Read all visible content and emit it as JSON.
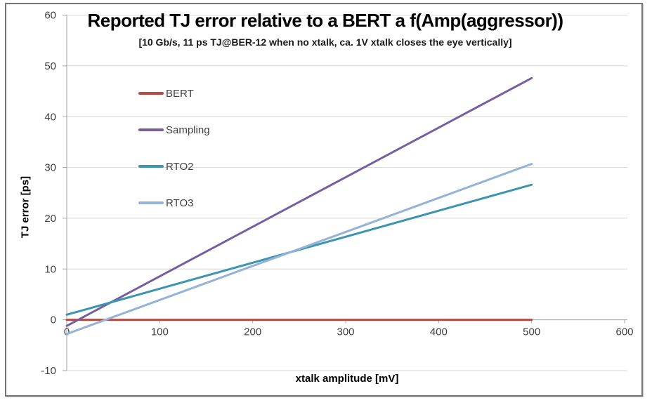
{
  "chart_data": {
    "type": "line",
    "title": "Reported TJ error relative to a BERT a f(Amp(aggressor))",
    "subtitle": "[10 Gb/s, 11 ps TJ@BER-12 when no xtalk, ca. 1V xtalk closes the eye vertically]",
    "xlabel": "xtalk amplitude [mV]",
    "ylabel": "TJ error [ps]",
    "xlim": [
      0,
      600
    ],
    "ylim": [
      -10,
      60
    ],
    "x_ticks": [
      0,
      100,
      200,
      300,
      400,
      500,
      600
    ],
    "y_ticks": [
      -10,
      0,
      10,
      20,
      30,
      40,
      50,
      60
    ],
    "grid": "horizontal-only",
    "legend_position": "inside-top-left",
    "series": [
      {
        "name": "BERT",
        "color": "#b54b44",
        "x": [
          0,
          500
        ],
        "values": [
          0,
          0
        ]
      },
      {
        "name": "Sampling",
        "color": "#7460a0",
        "x": [
          0,
          500
        ],
        "values": [
          -1.2,
          47.6
        ]
      },
      {
        "name": "RTO2",
        "color": "#3c94b0",
        "x": [
          0,
          500
        ],
        "values": [
          1.0,
          26.6
        ]
      },
      {
        "name": "RTO3",
        "color": "#95b3d7",
        "x": [
          0,
          500
        ],
        "values": [
          -2.8,
          30.7
        ]
      }
    ],
    "colors": {
      "gridline": "#d6d6d6",
      "axis_line": "#a6a6a6",
      "tick_label": "#3f3f3f"
    }
  }
}
